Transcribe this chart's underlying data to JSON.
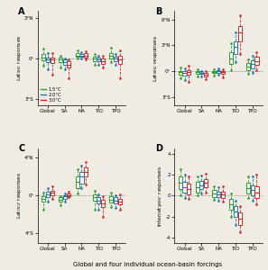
{
  "panels": [
    "A",
    "B",
    "C",
    "D"
  ],
  "categories": [
    "Global",
    "SA",
    "NA",
    "TIO",
    "TPO"
  ],
  "colors": [
    "#2ca02c",
    "#1f77b4",
    "#d62728"
  ],
  "labels": [
    "1.5°C",
    "2.0°C",
    "3.0°C"
  ],
  "ylabels": [
    "Lat$_{SHC}$ responses",
    "Lat$_{NHC}$ responses",
    "Lat$_{ITCZ}$ responses",
    "Intensity$_{NHC}$ responses"
  ],
  "yticks_A": [
    -3,
    0,
    3
  ],
  "ytick_labels_A": [
    "3°S",
    "0°",
    "3°N"
  ],
  "ylim_A": [
    -3.5,
    3.5
  ],
  "yticks_B": [
    -3,
    0,
    3,
    6
  ],
  "ytick_labels_B": [
    "3°S",
    "0°",
    "3°N",
    "6°N"
  ],
  "ylim_B": [
    -4,
    7
  ],
  "yticks_C": [
    -4,
    0,
    4
  ],
  "ytick_labels_C": [
    "4°S",
    "0°",
    "4°N"
  ],
  "ylim_C": [
    -5,
    5
  ],
  "yticks_D": [
    -4,
    -2,
    0,
    2,
    4
  ],
  "ytick_labels_D": [
    "-4",
    "-2",
    "0",
    "2",
    "4"
  ],
  "ylim_D": [
    -4.5,
    4.5
  ],
  "panel_A": {
    "Global": {
      "green": {
        "med": 0.05,
        "q1": -0.15,
        "q3": 0.3,
        "lo": -0.55,
        "hi": 0.7
      },
      "blue": {
        "med": -0.1,
        "q1": -0.3,
        "q3": 0.05,
        "lo": -0.8,
        "hi": 0.4
      },
      "red": {
        "med": -0.1,
        "q1": -0.35,
        "q3": 0.05,
        "lo": -1.2,
        "hi": 0.4
      }
    },
    "SA": {
      "green": {
        "med": -0.1,
        "q1": -0.3,
        "q3": 0.05,
        "lo": -0.7,
        "hi": 0.2
      },
      "blue": {
        "med": -0.3,
        "q1": -0.5,
        "q3": -0.1,
        "lo": -0.8,
        "hi": 0.0
      },
      "red": {
        "med": -0.5,
        "q1": -0.7,
        "q3": -0.25,
        "lo": -1.5,
        "hi": -0.1
      }
    },
    "NA": {
      "green": {
        "med": 0.2,
        "q1": 0.1,
        "q3": 0.35,
        "lo": 0.0,
        "hi": 0.55
      },
      "blue": {
        "med": 0.2,
        "q1": 0.1,
        "q3": 0.3,
        "lo": 0.0,
        "hi": 0.45
      },
      "red": {
        "med": 0.2,
        "q1": 0.05,
        "q3": 0.35,
        "lo": -0.1,
        "hi": 0.5
      }
    },
    "TIO": {
      "green": {
        "med": -0.05,
        "q1": -0.2,
        "q3": 0.1,
        "lo": -0.5,
        "hi": 0.3
      },
      "blue": {
        "med": -0.1,
        "q1": -0.25,
        "q3": 0.05,
        "lo": -0.5,
        "hi": 0.2
      },
      "red": {
        "med": -0.2,
        "q1": -0.4,
        "q3": 0.0,
        "lo": -0.7,
        "hi": 0.15
      }
    },
    "TPO": {
      "green": {
        "med": 0.2,
        "q1": 0.0,
        "q3": 0.4,
        "lo": -0.3,
        "hi": 0.8
      },
      "blue": {
        "med": -0.05,
        "q1": -0.2,
        "q3": 0.1,
        "lo": -0.5,
        "hi": 0.3
      },
      "red": {
        "med": -0.1,
        "q1": -0.4,
        "q3": 0.15,
        "lo": -1.5,
        "hi": 0.6
      }
    }
  },
  "panel_B": {
    "Global": {
      "green": {
        "med": -0.1,
        "q1": -0.4,
        "q3": 0.05,
        "lo": -0.8,
        "hi": 0.4
      },
      "blue": {
        "med": -0.2,
        "q1": -0.5,
        "q3": 0.0,
        "lo": -1.0,
        "hi": 0.3
      },
      "red": {
        "med": -0.1,
        "q1": -0.4,
        "q3": 0.15,
        "lo": -1.2,
        "hi": 0.6
      }
    },
    "SA": {
      "green": {
        "med": -0.1,
        "q1": -0.3,
        "q3": 0.05,
        "lo": -0.6,
        "hi": 0.2
      },
      "blue": {
        "med": -0.2,
        "q1": -0.35,
        "q3": -0.05,
        "lo": -0.6,
        "hi": 0.05
      },
      "red": {
        "med": -0.4,
        "q1": -0.6,
        "q3": -0.2,
        "lo": -0.9,
        "hi": -0.05
      }
    },
    "NA": {
      "green": {
        "med": -0.1,
        "q1": -0.25,
        "q3": 0.05,
        "lo": -0.5,
        "hi": 0.2
      },
      "blue": {
        "med": -0.05,
        "q1": -0.2,
        "q3": 0.1,
        "lo": -0.4,
        "hi": 0.3
      },
      "red": {
        "med": -0.1,
        "q1": -0.3,
        "q3": 0.05,
        "lo": -0.7,
        "hi": 0.2
      }
    },
    "TIO": {
      "green": {
        "med": 1.5,
        "q1": 0.8,
        "q3": 2.2,
        "lo": 0.1,
        "hi": 3.2
      },
      "blue": {
        "med": 2.8,
        "q1": 2.0,
        "q3": 3.5,
        "lo": 1.0,
        "hi": 4.5
      },
      "red": {
        "med": 4.5,
        "q1": 3.5,
        "q3": 5.2,
        "lo": 2.0,
        "hi": 6.5
      }
    },
    "TPO": {
      "green": {
        "med": 0.5,
        "q1": 0.1,
        "q3": 0.9,
        "lo": -0.3,
        "hi": 1.4
      },
      "blue": {
        "med": 0.8,
        "q1": 0.3,
        "q3": 1.3,
        "lo": -0.2,
        "hi": 1.8
      },
      "red": {
        "med": 1.2,
        "q1": 0.7,
        "q3": 1.7,
        "lo": 0.1,
        "hi": 2.2
      }
    }
  },
  "panel_C": {
    "Global": {
      "green": {
        "med": -0.3,
        "q1": -0.6,
        "q3": -0.05,
        "lo": -1.5,
        "hi": 0.3
      },
      "blue": {
        "med": 0.1,
        "q1": -0.2,
        "q3": 0.4,
        "lo": -0.6,
        "hi": 0.8
      },
      "red": {
        "med": 0.3,
        "q1": 0.05,
        "q3": 0.55,
        "lo": -0.3,
        "hi": 1.0
      }
    },
    "SA": {
      "green": {
        "med": -0.4,
        "q1": -0.65,
        "q3": -0.2,
        "lo": -1.0,
        "hi": -0.05
      },
      "blue": {
        "med": -0.1,
        "q1": -0.3,
        "q3": 0.05,
        "lo": -0.6,
        "hi": 0.2
      },
      "red": {
        "med": 0.05,
        "q1": -0.1,
        "q3": 0.2,
        "lo": -0.2,
        "hi": 0.4
      }
    },
    "NA": {
      "green": {
        "med": 1.5,
        "q1": 0.8,
        "q3": 2.0,
        "lo": 0.2,
        "hi": 2.8
      },
      "blue": {
        "med": 2.0,
        "q1": 1.3,
        "q3": 2.5,
        "lo": 0.8,
        "hi": 3.2
      },
      "red": {
        "med": 2.5,
        "q1": 2.0,
        "q3": 3.0,
        "lo": 1.2,
        "hi": 3.5
      }
    },
    "TIO": {
      "green": {
        "med": -0.2,
        "q1": -0.5,
        "q3": 0.1,
        "lo": -1.5,
        "hi": 0.5
      },
      "blue": {
        "med": -0.5,
        "q1": -0.8,
        "q3": -0.2,
        "lo": -1.5,
        "hi": 0.1
      },
      "red": {
        "med": -0.8,
        "q1": -1.2,
        "q3": -0.4,
        "lo": -2.2,
        "hi": -0.1
      }
    },
    "TPO": {
      "green": {
        "med": -0.4,
        "q1": -0.7,
        "q3": -0.1,
        "lo": -1.2,
        "hi": 0.3
      },
      "blue": {
        "med": -0.5,
        "q1": -0.8,
        "q3": -0.2,
        "lo": -1.3,
        "hi": 0.0
      },
      "red": {
        "med": -0.6,
        "q1": -0.9,
        "q3": -0.3,
        "lo": -1.5,
        "hi": 0.1
      }
    }
  },
  "panel_D": {
    "Global": {
      "green": {
        "med": 1.2,
        "q1": 0.6,
        "q3": 1.8,
        "lo": 0.0,
        "hi": 2.5
      },
      "blue": {
        "med": 0.8,
        "q1": 0.3,
        "q3": 1.3,
        "lo": -0.2,
        "hi": 2.0
      },
      "red": {
        "med": 0.6,
        "q1": 0.1,
        "q3": 1.1,
        "lo": -0.3,
        "hi": 1.8
      }
    },
    "SA": {
      "green": {
        "med": 0.8,
        "q1": 0.3,
        "q3": 1.3,
        "lo": 0.0,
        "hi": 1.8
      },
      "blue": {
        "med": 1.0,
        "q1": 0.6,
        "q3": 1.4,
        "lo": 0.2,
        "hi": 1.9
      },
      "red": {
        "med": 1.2,
        "q1": 0.8,
        "q3": 1.6,
        "lo": 0.3,
        "hi": 2.1
      }
    },
    "NA": {
      "green": {
        "med": 0.2,
        "q1": -0.1,
        "q3": 0.5,
        "lo": -0.4,
        "hi": 0.9
      },
      "blue": {
        "med": 0.15,
        "q1": -0.1,
        "q3": 0.4,
        "lo": -0.5,
        "hi": 0.8
      },
      "red": {
        "med": 0.1,
        "q1": -0.2,
        "q3": 0.4,
        "lo": -0.6,
        "hi": 0.9
      }
    },
    "TIO": {
      "green": {
        "med": -0.8,
        "q1": -1.3,
        "q3": -0.3,
        "lo": -2.0,
        "hi": 0.2
      },
      "blue": {
        "med": -1.5,
        "q1": -2.0,
        "q3": -1.0,
        "lo": -2.8,
        "hi": -0.5
      },
      "red": {
        "med": -2.2,
        "q1": -2.8,
        "q3": -1.6,
        "lo": -3.5,
        "hi": -1.0
      }
    },
    "TPO": {
      "green": {
        "med": 0.7,
        "q1": 0.2,
        "q3": 1.2,
        "lo": -0.2,
        "hi": 1.8
      },
      "blue": {
        "med": 0.5,
        "q1": 0.0,
        "q3": 1.0,
        "lo": -0.5,
        "hi": 1.8
      },
      "red": {
        "med": 0.3,
        "q1": -0.2,
        "q3": 0.9,
        "lo": -0.8,
        "hi": 2.0
      }
    }
  },
  "background_color": "#f0ece4",
  "box_width": 0.22,
  "offsets": [
    -0.25,
    0.0,
    0.25
  ]
}
